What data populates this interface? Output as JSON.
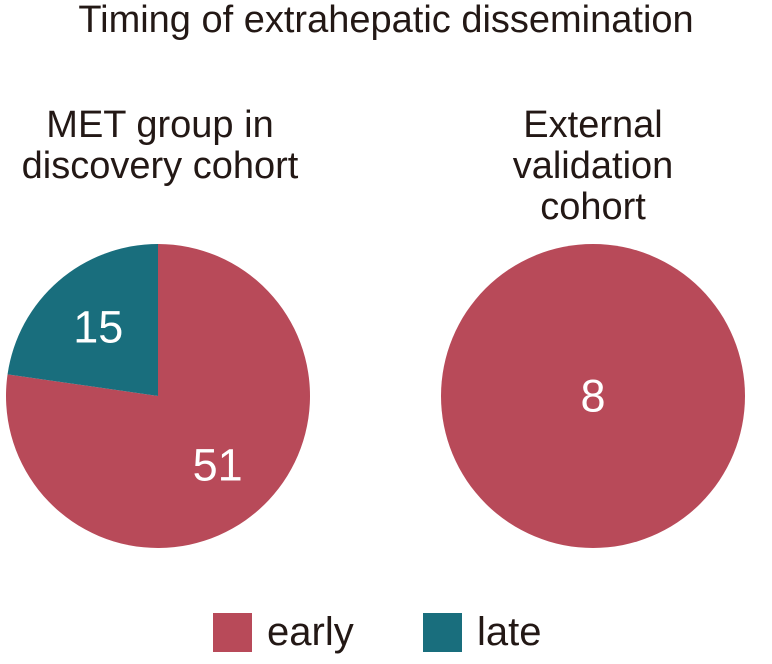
{
  "title": "Timing of extrahepatic dissemination",
  "colors": {
    "early": "#b84a59",
    "late": "#196e7d",
    "text": "#231815",
    "value_label": "#ffffff",
    "background": "#ffffff"
  },
  "chart_data": [
    {
      "type": "pie",
      "title": "MET group in discovery cohort",
      "title_lines": [
        "MET group in",
        "discovery cohort"
      ],
      "categories": [
        "early",
        "late"
      ],
      "values": [
        51,
        15
      ],
      "value_labels": [
        "51",
        "15"
      ],
      "colors": [
        "#b84a59",
        "#196e7d"
      ],
      "start_angle": 90,
      "counterclock": false,
      "label_color": "#ffffff",
      "legend_position": "bottom"
    },
    {
      "type": "pie",
      "title": "External validation cohort",
      "title_lines": [
        "External validation",
        "cohort"
      ],
      "categories": [
        "early"
      ],
      "values": [
        8
      ],
      "value_labels": [
        "8"
      ],
      "colors": [
        "#b84a59"
      ],
      "start_angle": 90,
      "counterclock": false,
      "label_color": "#ffffff",
      "legend_position": "bottom"
    }
  ],
  "legend": {
    "items": [
      {
        "label": "early",
        "color": "#b84a59"
      },
      {
        "label": "late",
        "color": "#196e7d"
      }
    ]
  }
}
